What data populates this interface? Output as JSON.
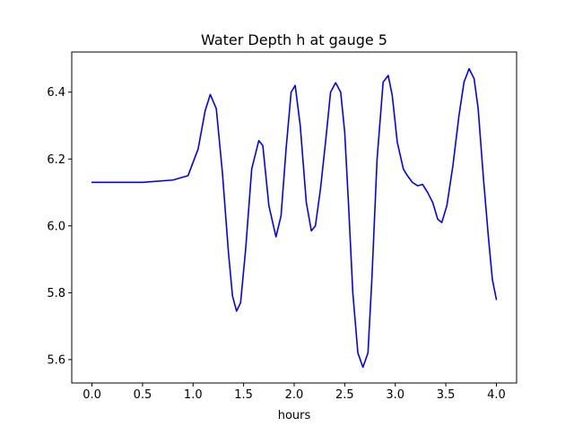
{
  "chart_data": {
    "type": "line",
    "title": "Water Depth h at gauge 5",
    "xlabel": "hours",
    "ylabel": "",
    "xlim": [
      -0.2,
      4.2
    ],
    "ylim": [
      5.53,
      6.52
    ],
    "x_ticks": [
      0.0,
      0.5,
      1.0,
      1.5,
      2.0,
      2.5,
      3.0,
      3.5,
      4.0
    ],
    "x_tick_labels": [
      "0.0",
      "0.5",
      "1.0",
      "1.5",
      "2.0",
      "2.5",
      "3.0",
      "3.5",
      "4.0"
    ],
    "y_ticks": [
      5.6,
      5.8,
      6.0,
      6.2,
      6.4
    ],
    "y_tick_labels": [
      "5.6",
      "5.8",
      "6.0",
      "6.2",
      "6.4"
    ],
    "grid": false,
    "legend": "none",
    "series": [
      {
        "color": "#0000ff",
        "x": [
          0.0,
          0.5,
          0.8,
          0.95,
          1.05,
          1.12,
          1.17,
          1.23,
          1.29,
          1.35,
          1.39,
          1.43,
          1.47,
          1.52,
          1.58,
          1.65,
          1.69,
          1.75,
          1.82,
          1.87,
          1.92,
          1.97,
          2.01,
          2.06,
          2.12,
          2.17,
          2.21,
          2.26,
          2.31,
          2.36,
          2.41,
          2.46,
          2.5,
          2.54,
          2.58,
          2.63,
          2.68,
          2.73,
          2.77,
          2.82,
          2.88,
          2.93,
          2.97,
          3.02,
          3.08,
          3.12,
          3.17,
          3.22,
          3.27,
          3.32,
          3.37,
          3.42,
          3.46,
          3.51,
          3.57,
          3.63,
          3.68,
          3.73,
          3.78,
          3.82,
          3.87,
          3.92,
          3.96,
          4.0
        ],
        "y": [
          6.13,
          6.13,
          6.137,
          6.15,
          6.23,
          6.345,
          6.393,
          6.35,
          6.16,
          5.92,
          5.79,
          5.745,
          5.77,
          5.93,
          6.17,
          6.255,
          6.24,
          6.06,
          5.967,
          6.03,
          6.23,
          6.4,
          6.42,
          6.3,
          6.07,
          5.985,
          6.0,
          6.11,
          6.25,
          6.4,
          6.428,
          6.4,
          6.28,
          6.05,
          5.8,
          5.62,
          5.577,
          5.62,
          5.85,
          6.2,
          6.43,
          6.45,
          6.39,
          6.25,
          6.17,
          6.15,
          6.13,
          6.12,
          6.124,
          6.1,
          6.07,
          6.02,
          6.01,
          6.06,
          6.18,
          6.33,
          6.43,
          6.47,
          6.44,
          6.35,
          6.15,
          5.97,
          5.84,
          5.78
        ]
      }
    ]
  }
}
